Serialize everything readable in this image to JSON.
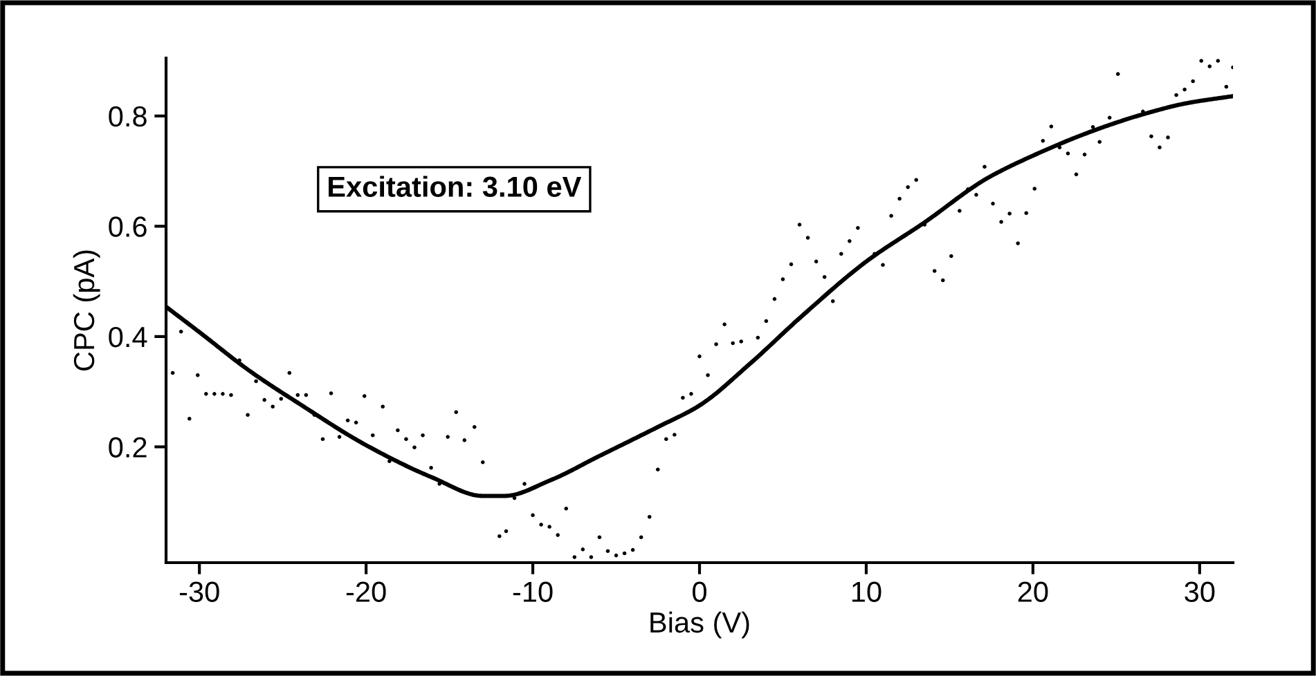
{
  "chart_data": {
    "type": "scatter",
    "xlabel": "Bias (V)",
    "ylabel": "CPC (pA)",
    "annotations": [
      "Excitation: 3.10 eV"
    ],
    "xlim": [
      -32,
      32
    ],
    "xticks": [
      -30,
      -20,
      -10,
      0,
      10,
      20,
      30
    ],
    "ylim": [
      -0.01,
      0.905
    ],
    "yticks": [
      0.2,
      0.4,
      0.6,
      0.8
    ],
    "grid": false,
    "legend": false,
    "series": [
      {
        "color": "#000000",
        "marker": "circle",
        "x": [
          -31.6,
          -31.1,
          -30.6,
          -30.1,
          -29.6,
          -29.1,
          -28.6,
          -28.1,
          -27.6,
          -27.1,
          -26.6,
          -26.1,
          -25.6,
          -25.1,
          -24.6,
          -24.1,
          -23.6,
          -23.1,
          -22.6,
          -22.1,
          -21.6,
          -21.1,
          -20.6,
          -20.1,
          -19.6,
          -19.0,
          -18.6,
          -18.1,
          -17.6,
          -17.1,
          -16.6,
          -16.1,
          -15.6,
          -15.1,
          -14.6,
          -14.1,
          -13.5,
          -13.0,
          -12.0,
          -11.6,
          -11.1,
          -10.5,
          -10.0,
          -9.5,
          -9.0,
          -8.5,
          -8.0,
          -7.5,
          -7.0,
          -6.5,
          -6.0,
          -5.5,
          -5.0,
          -4.5,
          -4.0,
          -3.5,
          -3.0,
          -2.5,
          -2.0,
          -1.5,
          -1.0,
          -0.5,
          0.0,
          0.5,
          1.0,
          1.5,
          2.0,
          2.5,
          3.0,
          3.5,
          4.0,
          4.5,
          5.0,
          5.5,
          6.0,
          6.5,
          7.0,
          7.5,
          8.0,
          8.5,
          9.0,
          9.5,
          10.5,
          11.0,
          11.5,
          12.0,
          12.5,
          13.0,
          13.5,
          14.1,
          14.6,
          15.1,
          15.6,
          16.1,
          16.6,
          17.1,
          17.6,
          18.1,
          18.6,
          19.1,
          19.6,
          20.1,
          20.6,
          21.1,
          21.6,
          22.1,
          22.6,
          23.1,
          23.6,
          24.0,
          24.6,
          25.1,
          25.6,
          26.6,
          27.1,
          27.6,
          28.1,
          28.6,
          29.1,
          29.6,
          30.1,
          30.6,
          31.1,
          31.6,
          32.0
        ],
        "values": [
          0.334,
          0.409,
          0.251,
          0.33,
          0.296,
          0.296,
          0.296,
          0.294,
          0.357,
          0.258,
          0.319,
          0.285,
          0.273,
          0.287,
          0.334,
          0.294,
          0.294,
          0.258,
          0.214,
          0.297,
          0.218,
          0.248,
          0.244,
          0.292,
          0.221,
          0.273,
          0.174,
          0.23,
          0.214,
          0.199,
          0.221,
          0.162,
          0.133,
          0.218,
          0.263,
          0.212,
          0.236,
          0.172,
          0.038,
          0.047,
          0.107,
          0.133,
          0.076,
          0.059,
          0.055,
          0.04,
          0.088,
          0.0,
          0.014,
          0.0,
          0.036,
          0.011,
          0.003,
          0.007,
          0.013,
          0.036,
          0.073,
          0.159,
          0.214,
          0.222,
          0.289,
          0.296,
          0.364,
          0.33,
          0.386,
          0.422,
          0.388,
          0.391,
          0.35,
          0.398,
          0.428,
          0.468,
          0.504,
          0.531,
          0.603,
          0.579,
          0.536,
          0.508,
          0.464,
          0.55,
          0.573,
          0.597,
          0.55,
          0.53,
          0.619,
          0.65,
          0.671,
          0.684,
          0.603,
          0.519,
          0.502,
          0.546,
          0.628,
          0.667,
          0.657,
          0.708,
          0.641,
          0.608,
          0.623,
          0.569,
          0.624,
          0.668,
          0.755,
          0.781,
          0.743,
          0.732,
          0.694,
          0.73,
          0.78,
          0.753,
          0.797,
          0.876,
          0.794,
          0.808,
          0.763,
          0.743,
          0.761,
          0.838,
          0.848,
          0.863,
          0.9,
          0.89,
          0.9,
          0.853,
          0.888
        ]
      },
      {
        "type": "line",
        "color": "#000000",
        "marker": "none",
        "line_style": "solid",
        "x": [
          -32,
          -30,
          -27,
          -24,
          -20,
          -16,
          -13,
          -11.7,
          -8.9,
          -6.1,
          -2.5,
          0,
          3,
          6.1,
          10,
          13.5,
          17.2,
          20,
          23.6,
          26.6,
          29.2,
          32
        ],
        "values": [
          0.454,
          0.408,
          0.338,
          0.278,
          0.203,
          0.144,
          0.111,
          0.111,
          0.14,
          0.182,
          0.236,
          0.275,
          0.35,
          0.436,
          0.536,
          0.607,
          0.686,
          0.728,
          0.773,
          0.803,
          0.823,
          0.836
        ]
      }
    ]
  }
}
